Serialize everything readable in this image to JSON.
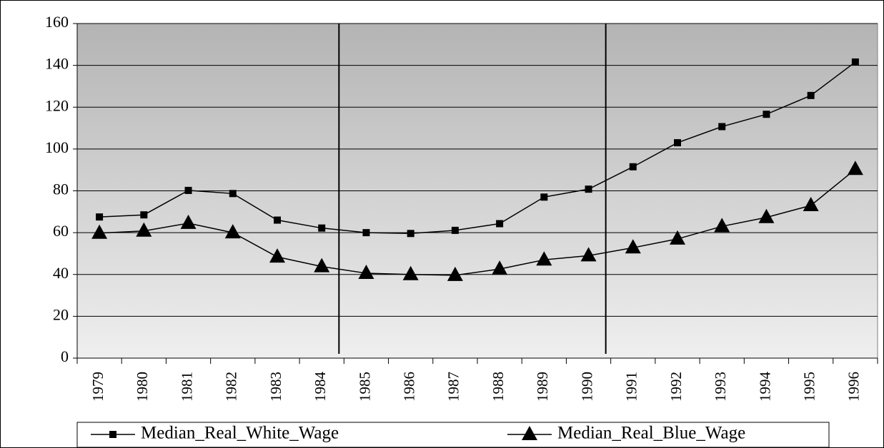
{
  "chart_data": {
    "type": "line",
    "categories": [
      "1979",
      "1980",
      "1981",
      "1982",
      "1983",
      "1984",
      "1985",
      "1986",
      "1987",
      "1988",
      "1989",
      "1990",
      "1991",
      "1992",
      "1993",
      "1994",
      "1995",
      "1996"
    ],
    "series": [
      {
        "name": "Median_Real_White_Wage",
        "color": "#000000",
        "marker": "square",
        "values": [
          67.5,
          68.5,
          80.2,
          78.7,
          66,
          62.2,
          60,
          59.6,
          61.1,
          64.3,
          77,
          80.8,
          91.5,
          103,
          110.7,
          116.6,
          125.6,
          141.6
        ]
      },
      {
        "name": "Median_Real_Blue_Wage",
        "color": "#000000",
        "marker": "triangle",
        "values": [
          59.8,
          60.8,
          64.5,
          60,
          48.4,
          43.8,
          40.6,
          40,
          39.6,
          42.6,
          47,
          49,
          52.8,
          57,
          63,
          67.3,
          73,
          90.3
        ]
      }
    ],
    "ylim": [
      0,
      160
    ],
    "yticks": [
      0,
      20,
      40,
      60,
      80,
      100,
      120,
      140,
      160
    ],
    "grid": true,
    "legend": "bottom"
  }
}
